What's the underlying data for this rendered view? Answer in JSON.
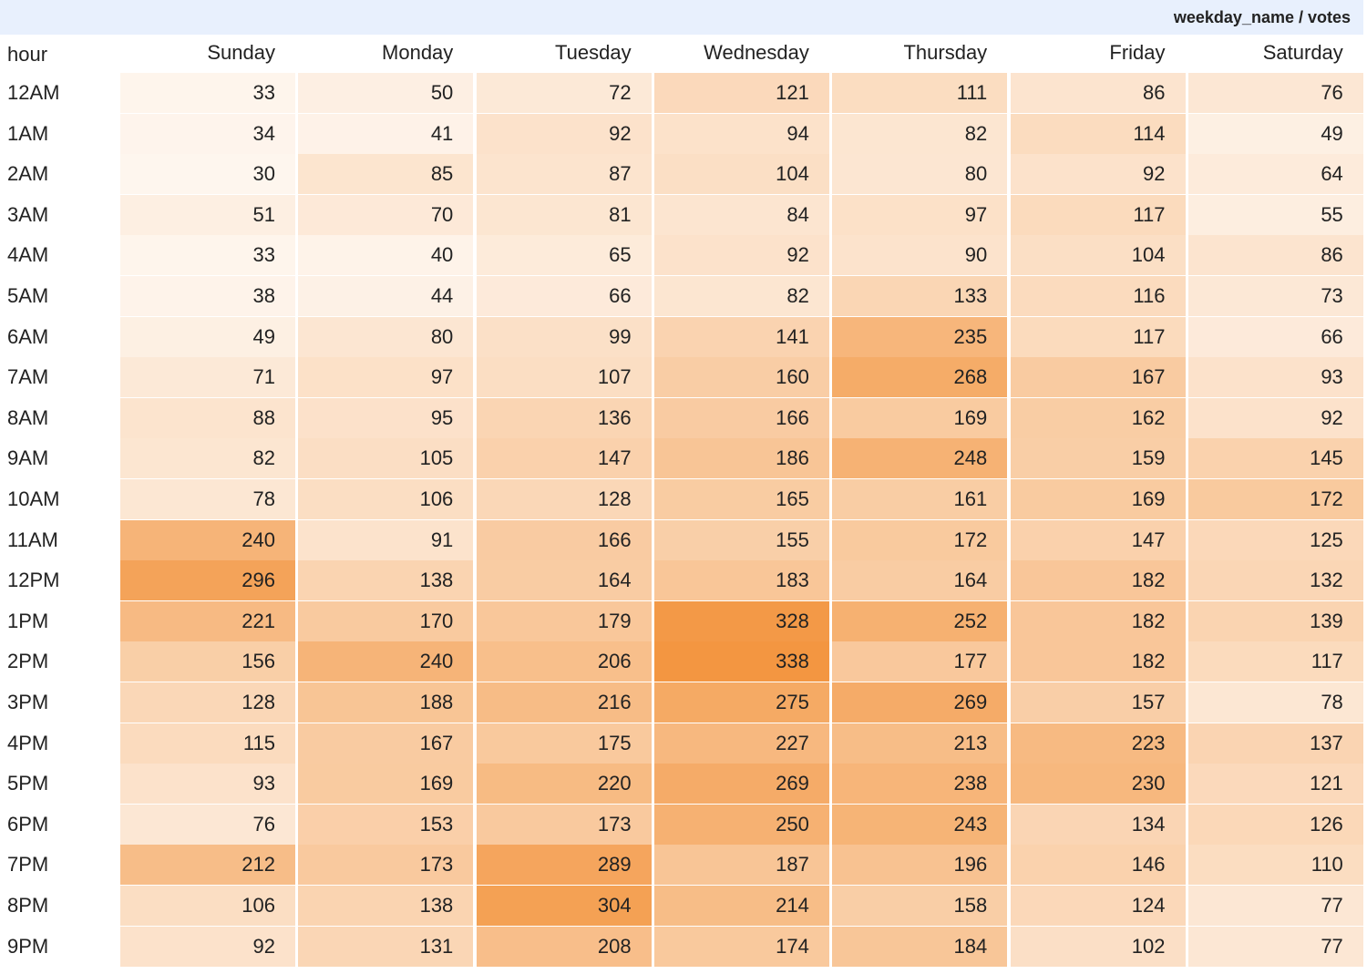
{
  "header": {
    "title": "weekday_name / votes"
  },
  "table": {
    "columns": [
      "hour",
      "Sunday",
      "Monday",
      "Tuesday",
      "Wednesday",
      "Thursday",
      "Friday",
      "Saturday"
    ],
    "rows": [
      [
        "12AM",
        33,
        50,
        72,
        121,
        111,
        86,
        76
      ],
      [
        "1AM",
        34,
        41,
        92,
        94,
        82,
        114,
        49
      ],
      [
        "2AM",
        30,
        85,
        87,
        104,
        80,
        92,
        64
      ],
      [
        "3AM",
        51,
        70,
        81,
        84,
        97,
        117,
        55
      ],
      [
        "4AM",
        33,
        40,
        65,
        92,
        90,
        104,
        86
      ],
      [
        "5AM",
        38,
        44,
        66,
        82,
        133,
        116,
        73
      ],
      [
        "6AM",
        49,
        80,
        99,
        141,
        235,
        117,
        66
      ],
      [
        "7AM",
        71,
        97,
        107,
        160,
        268,
        167,
        93
      ],
      [
        "8AM",
        88,
        95,
        136,
        166,
        169,
        162,
        92
      ],
      [
        "9AM",
        82,
        105,
        147,
        186,
        248,
        159,
        145
      ],
      [
        "10AM",
        78,
        106,
        128,
        165,
        161,
        169,
        172
      ],
      [
        "11AM",
        240,
        91,
        166,
        155,
        172,
        147,
        125
      ],
      [
        "12PM",
        296,
        138,
        164,
        183,
        164,
        182,
        132
      ],
      [
        "1PM",
        221,
        170,
        179,
        328,
        252,
        182,
        139
      ],
      [
        "2PM",
        156,
        240,
        206,
        338,
        177,
        182,
        117
      ],
      [
        "3PM",
        128,
        188,
        216,
        275,
        269,
        157,
        78
      ],
      [
        "4PM",
        115,
        167,
        175,
        227,
        213,
        223,
        137
      ],
      [
        "5PM",
        93,
        169,
        220,
        269,
        238,
        230,
        121
      ],
      [
        "6PM",
        76,
        153,
        173,
        250,
        243,
        134,
        126
      ],
      [
        "7PM",
        212,
        173,
        289,
        187,
        196,
        146,
        110
      ],
      [
        "8PM",
        106,
        138,
        304,
        214,
        158,
        124,
        77
      ],
      [
        "9PM",
        92,
        131,
        208,
        174,
        184,
        102,
        77
      ]
    ]
  }
}
